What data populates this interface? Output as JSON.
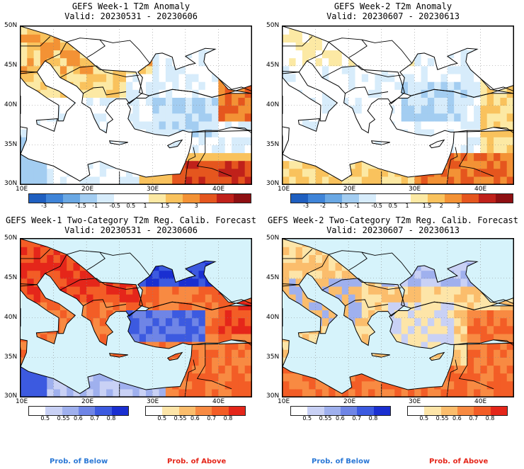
{
  "panels": [
    {
      "title1": "GEFS Week-1 T2m Anomaly",
      "title2": "Valid: 20230531 - 20230606",
      "kind": "anomaly",
      "scheme": "w1"
    },
    {
      "title1": "GEFS Week-2 T2m Anomaly",
      "title2": "Valid: 20230607 - 20230613",
      "kind": "anomaly",
      "scheme": "w2"
    },
    {
      "title1": "GEFS Week-1 Two-Category T2m Reg. Calib. Forecast",
      "title2": "Valid: 20230531 - 20230606",
      "kind": "prob",
      "scheme": "p1"
    },
    {
      "title1": "GEFS Week-2 Two-Category T2m Reg. Calib. Forecast",
      "title2": "Valid: 20230607 - 20230613",
      "kind": "prob",
      "scheme": "p2"
    }
  ],
  "axes": {
    "lat_labels": [
      "50N",
      "45N",
      "40N",
      "35N",
      "30N"
    ],
    "lon_labels": [
      "10E",
      "20E",
      "30E",
      "40E"
    ],
    "lon_range": [
      10,
      45
    ],
    "lat_range": [
      30,
      50
    ]
  },
  "anomaly_colorbar": {
    "ticks": [
      "-3",
      "-2",
      "-1.5",
      "-1",
      "-0.5",
      "0.5",
      "1",
      "1.5",
      "2",
      "3"
    ],
    "colors": [
      "#1f5fc0",
      "#3f84d8",
      "#6aa8e4",
      "#a3cdf1",
      "#d7ecfb",
      "#ffffff",
      "#ffffff",
      "#fce9a4",
      "#f9c25d",
      "#f39235",
      "#e5561e",
      "#c0211a",
      "#8e0f12"
    ]
  },
  "prob_below_colorbar": {
    "ticks": [
      "0.5",
      "0.55",
      "0.6",
      "0.7",
      "0.8"
    ],
    "colors": [
      "#ffffff",
      "#c9d1f5",
      "#9fb0ee",
      "#6f85e6",
      "#3c5ae0",
      "#1a2fd1"
    ]
  },
  "prob_above_colorbar": {
    "ticks": [
      "0.5",
      "0.55",
      "0.6",
      "0.7",
      "0.8"
    ],
    "colors": [
      "#ffffff",
      "#fde5a8",
      "#fbbd6c",
      "#f88a42",
      "#f35d26",
      "#e5261a"
    ]
  },
  "prob_labels": {
    "below": "Prob. of Below",
    "above": "Prob. of Above"
  },
  "colors": {
    "sea": "#d6f3fb",
    "below_text": "#2a78d6",
    "above_text": "#e5261a"
  }
}
